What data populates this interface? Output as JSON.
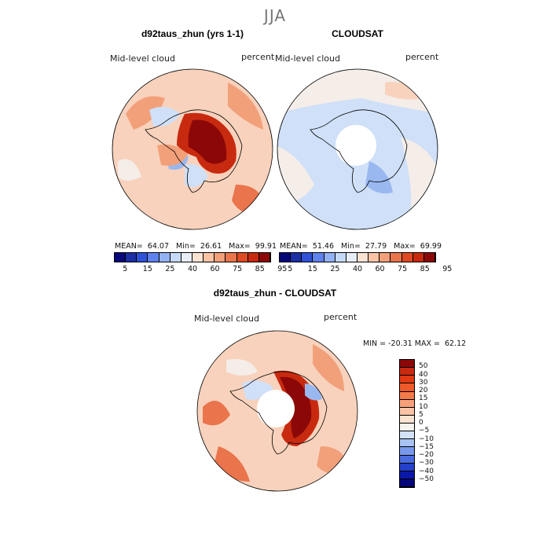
{
  "figure": {
    "season": "JJA",
    "panel_top_left": {
      "title": "d92taus_zhun (yrs 1-1)",
      "left_label": "Mid-level cloud",
      "right_label": "percent",
      "stats": "MEAN=  64.07   Min=  26.61   Max=  99.91"
    },
    "panel_top_right": {
      "title": "CLOUDSAT",
      "left_label": "Mid-level cloud",
      "right_label": "percent",
      "stats": "MEAN=  51.46   Min=  27.79   Max=  69.99"
    },
    "panel_bottom": {
      "title": "d92taus_zhun - CLOUDSAT",
      "left_label": "Mid-level cloud",
      "right_label": "percent",
      "stats": "MIN = -20.31 MAX =  62.12"
    },
    "colorbar_abs": {
      "ticks": [
        "5",
        "15",
        "25",
        "40",
        "60",
        "75",
        "85",
        "95"
      ],
      "colors": [
        "#08087a",
        "#1c2fa6",
        "#2f52d8",
        "#5f82ee",
        "#93b2f5",
        "#c6daf8",
        "#e8eef8",
        "#fbe3d2",
        "#f8c4a5",
        "#f2a07a",
        "#ea744c",
        "#de4a24",
        "#c82a10",
        "#8c0808"
      ]
    },
    "colorbar_diff": {
      "ticks": [
        "50",
        "40",
        "30",
        "20",
        "15",
        "10",
        "5",
        "0",
        "−5",
        "−10",
        "−15",
        "−20",
        "−30",
        "−40",
        "−50"
      ],
      "colors": [
        "#8c0808",
        "#c82a10",
        "#e03a14",
        "#ef5a2a",
        "#f57a4a",
        "#f8a07a",
        "#fbc4a6",
        "#fbe3d2",
        "#f6f2ee",
        "#d4e2f8",
        "#a8c4f4",
        "#7898ec",
        "#4a6ce0",
        "#2440c8",
        "#0c18a8",
        "#06067a"
      ]
    },
    "map_palette": {
      "ocean_bg": "#f8d2bc",
      "light_blue": "#cfe0f8",
      "mid_blue": "#9ab8f0",
      "pale": "#f4ede8",
      "orange": "#f2a07a",
      "deep_orange": "#ea744c",
      "red": "#c82a10",
      "dark_red": "#8c0808"
    }
  }
}
